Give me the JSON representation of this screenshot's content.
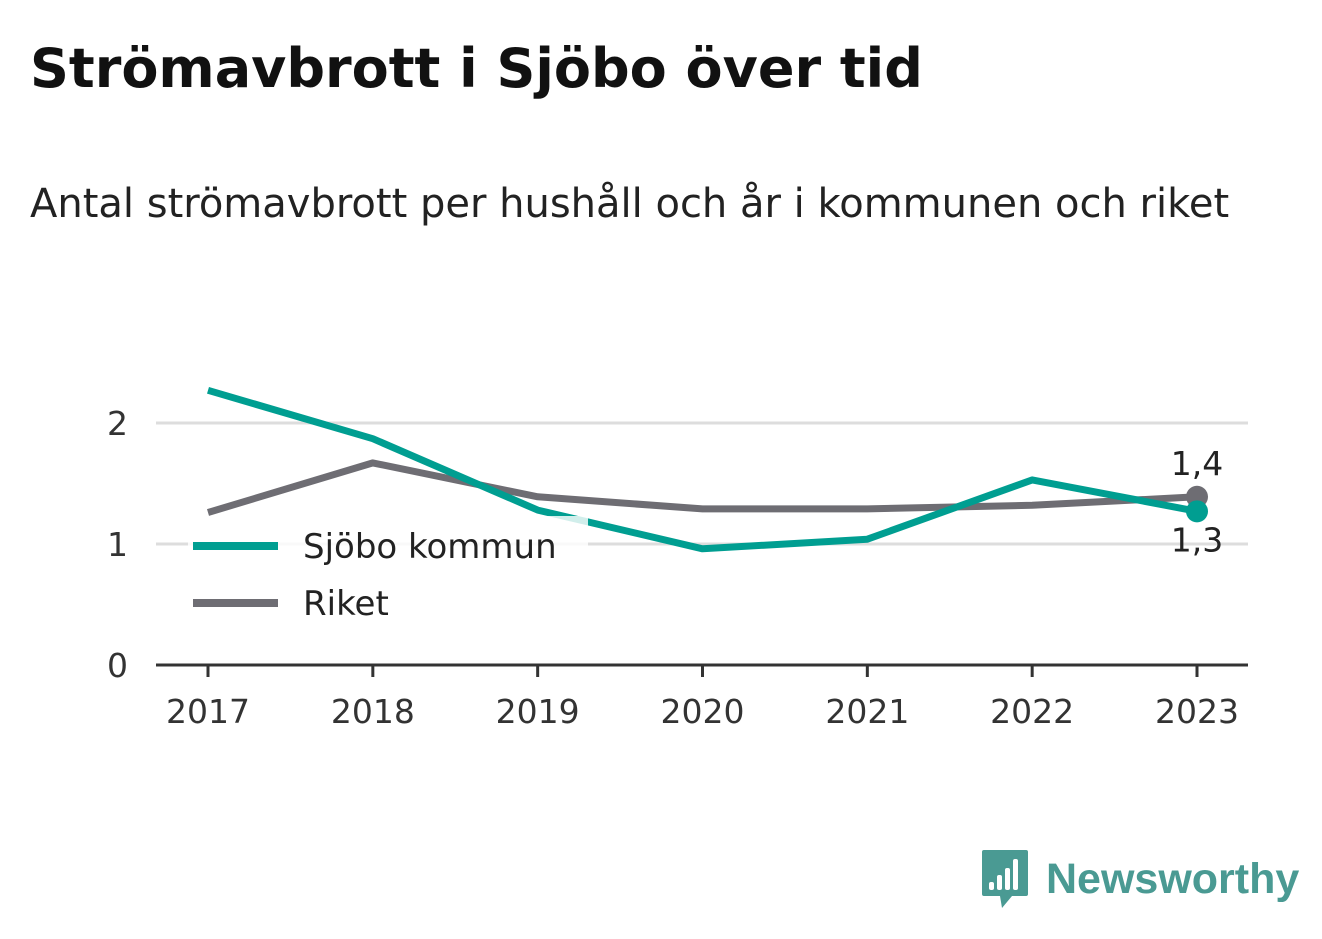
{
  "title": "Strömavbrott i Sjöbo över tid",
  "subtitle": "Antal strömavbrott per hushåll och år i kommunen och riket",
  "brand": "Newsworthy",
  "colors": {
    "sjobo": "#009e91",
    "riket": "#6e6d73",
    "grid": "#dddddd",
    "axis": "#333333",
    "brand": "#4a9a93"
  },
  "chart_data": {
    "type": "line",
    "x": [
      "2017",
      "2018",
      "2019",
      "2020",
      "2021",
      "2022",
      "2023"
    ],
    "series": [
      {
        "name": "Sjöbo kommun",
        "values": [
          2.27,
          1.87,
          1.28,
          0.96,
          1.04,
          1.53,
          1.27
        ],
        "end_label": "1,3"
      },
      {
        "name": "Riket",
        "values": [
          1.26,
          1.67,
          1.39,
          1.29,
          1.29,
          1.32,
          1.39
        ],
        "end_label": "1,4"
      }
    ],
    "yticks": [
      "0",
      "1",
      "2"
    ],
    "ylim": [
      0,
      2.4
    ],
    "grid": true,
    "legend_position": "left"
  }
}
